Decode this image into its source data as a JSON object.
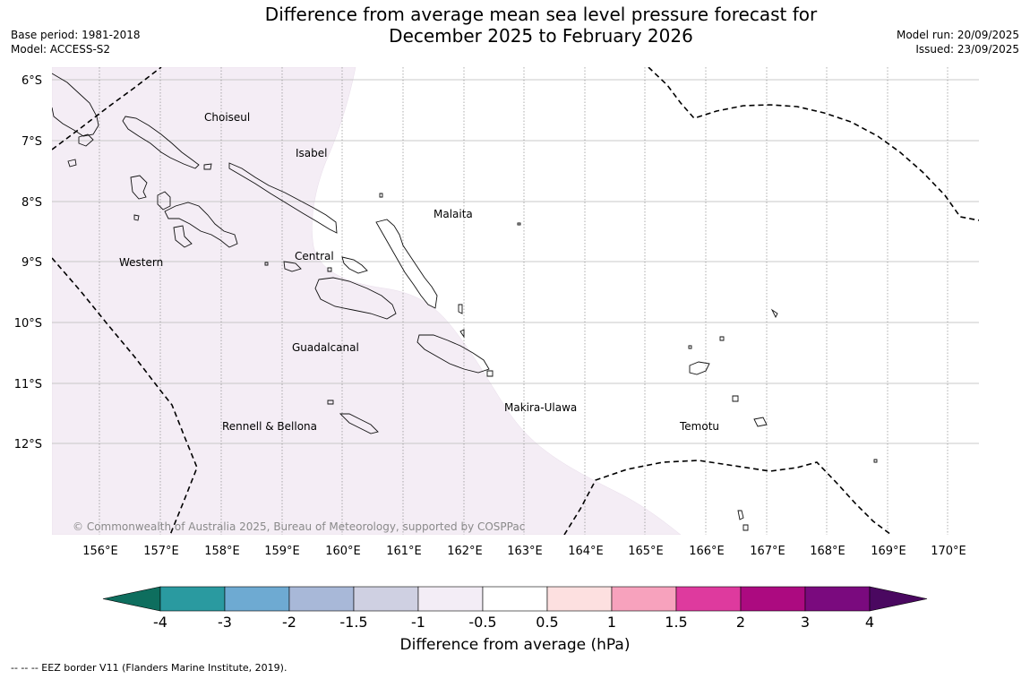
{
  "map": {
    "title_line1": "Difference from average mean sea level pressure forecast for",
    "title_line2": "December 2025 to February 2026",
    "base_period": "Base period: 1981-2018",
    "model": "Model: ACCESS-S2",
    "model_run": "Model run: 20/09/2025",
    "issued": "Issued: 23/09/2025",
    "copyright": "© Commonwealth of Australia 2025, Bureau of Meteorology, supported by COSPPac",
    "footer_note": "-- -- -- EEZ border V11 (Flanders Marine Institute, 2019).",
    "lat_labels": [
      "6°S",
      "7°S",
      "8°S",
      "9°S",
      "10°S",
      "11°S",
      "12°S"
    ],
    "lon_labels": [
      "156°E",
      "157°E",
      "158°E",
      "159°E",
      "160°E",
      "161°E",
      "162°E",
      "163°E",
      "164°E",
      "165°E",
      "166°E",
      "167°E",
      "168°E",
      "169°E",
      "170°E"
    ],
    "provinces": [
      "Choiseul",
      "Isabel",
      "Malaita",
      "Western",
      "Central",
      "Guadalcanal",
      "Makira-Ulawa",
      "Rennell & Bellona",
      "Temotu"
    ]
  },
  "legend": {
    "title": "Difference from average (hPa)",
    "tick_labels": [
      "-4",
      "-3",
      "-2",
      "-1.5",
      "-1",
      "-0.5",
      "0.5",
      "1",
      "1.5",
      "2",
      "3",
      "4"
    ],
    "colors": [
      "#0e6e5e",
      "#2a9aa0",
      "#6eaad2",
      "#a8b8d8",
      "#cfd0e2",
      "#f3edf6",
      "#ffffff",
      "#fde0e0",
      "#f7a2bd",
      "#de3a9e",
      "#ac0a80",
      "#7a0a7e",
      "#4a0860"
    ]
  },
  "shading": {
    "region_value_class": "-1 to -0.5",
    "region_color": "#f4edf5"
  }
}
